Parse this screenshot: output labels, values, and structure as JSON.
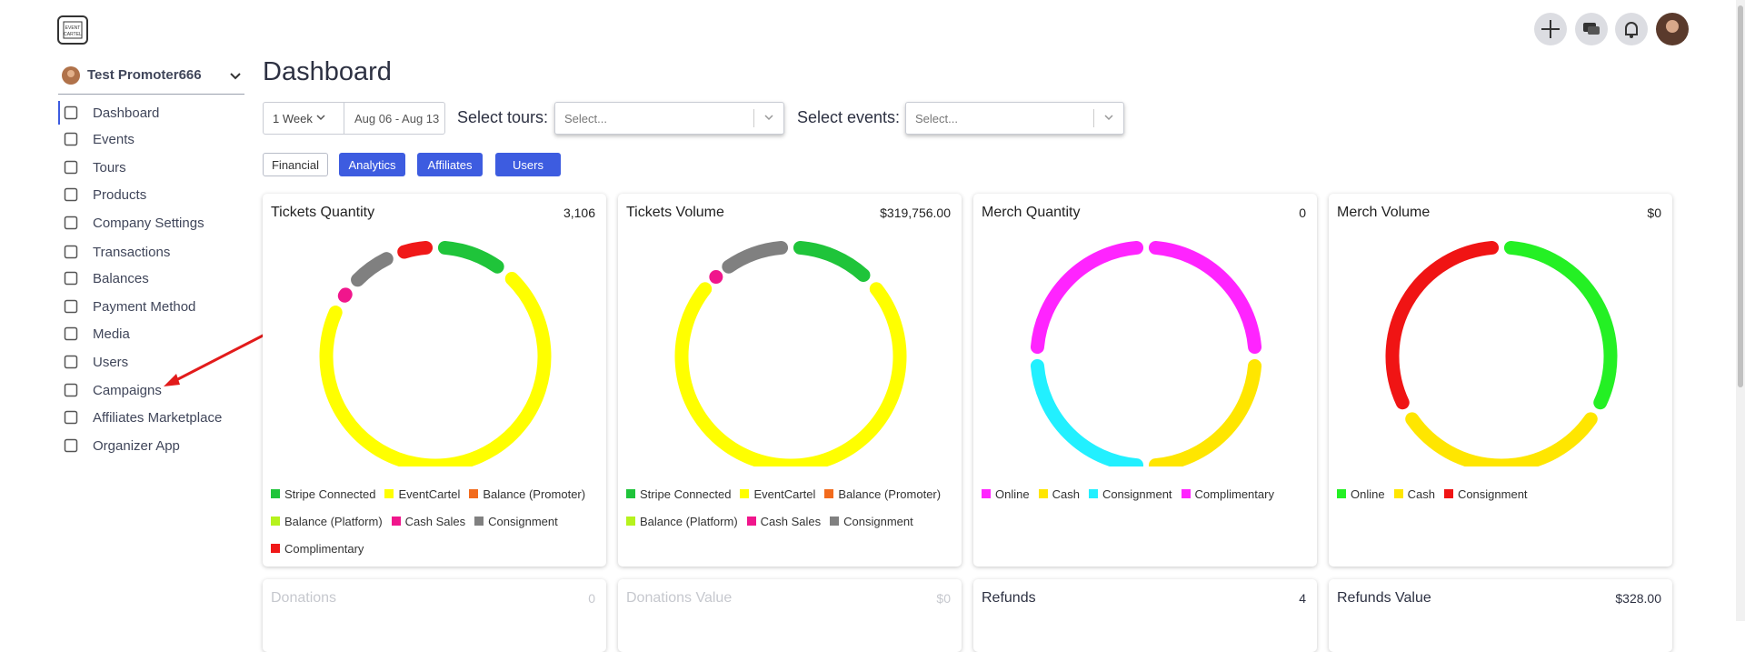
{
  "sidebar": {
    "user": "Test Promoter666",
    "menu": [
      "Dashboard",
      "Events",
      "Tours",
      "Products",
      "Company Settings",
      "Transactions",
      "Balances",
      "Payment Method",
      "Media",
      "Users",
      "Campaigns",
      "Affiliates Marketplace",
      "Organizer App"
    ]
  },
  "header": {
    "title": "Dashboard",
    "period": "1 Week",
    "date_range": "Aug 06 - Aug 13",
    "tours_label": "Select tours:",
    "tours_placeholder": "Select...",
    "events_label": "Select events:",
    "events_placeholder": "Select..."
  },
  "tabs": [
    "Financial",
    "Analytics",
    "Affiliates",
    "Users"
  ],
  "chart_data": [
    {
      "type": "donut",
      "title": "Tickets Quantity",
      "total": "3,106",
      "categories": [
        "Stripe Connected",
        "EventCartel",
        "Balance (Promoter)",
        "Balance (Platform)",
        "Cash Sales",
        "Consignment",
        "Complimentary"
      ],
      "values": [
        11,
        72,
        0,
        0,
        3,
        8,
        6
      ],
      "colors": [
        "#1fc43a",
        "#ffff00",
        "#f26b1d",
        "#b6f21d",
        "#f0168c",
        "#808080",
        "#f01818"
      ]
    },
    {
      "type": "donut",
      "title": "Tickets Volume",
      "total": "$319,756.00",
      "categories": [
        "Stripe Connected",
        "EventCartel",
        "Balance (Promoter)",
        "Balance (Platform)",
        "Cash Sales",
        "Consignment"
      ],
      "values": [
        13,
        74,
        0,
        0,
        2,
        11
      ],
      "colors": [
        "#1fc43a",
        "#ffff00",
        "#f26b1d",
        "#b6f21d",
        "#f0168c",
        "#808080"
      ]
    },
    {
      "type": "donut",
      "title": "Merch Quantity",
      "total": "0",
      "categories": [
        "Online",
        "Cash",
        "Consignment",
        "Complimentary"
      ],
      "values": [
        25,
        25,
        25,
        25
      ],
      "colors": [
        "#ff24ff",
        "#ffe600",
        "#22f0ff",
        "#ff24ff"
      ]
    },
    {
      "type": "donut",
      "title": "Merch Volume",
      "total": "$0",
      "categories": [
        "Online",
        "Cash",
        "Consignment"
      ],
      "values": [
        33.3,
        33.3,
        33.3
      ],
      "colors": [
        "#24f024",
        "#ffe600",
        "#f01414"
      ]
    }
  ],
  "summary_cards": [
    {
      "title": "Donations",
      "value": "0"
    },
    {
      "title": "Donations Value",
      "value": "$0"
    },
    {
      "title": "Refunds",
      "value": "4"
    },
    {
      "title": "Refunds Value",
      "value": "$328.00"
    }
  ]
}
